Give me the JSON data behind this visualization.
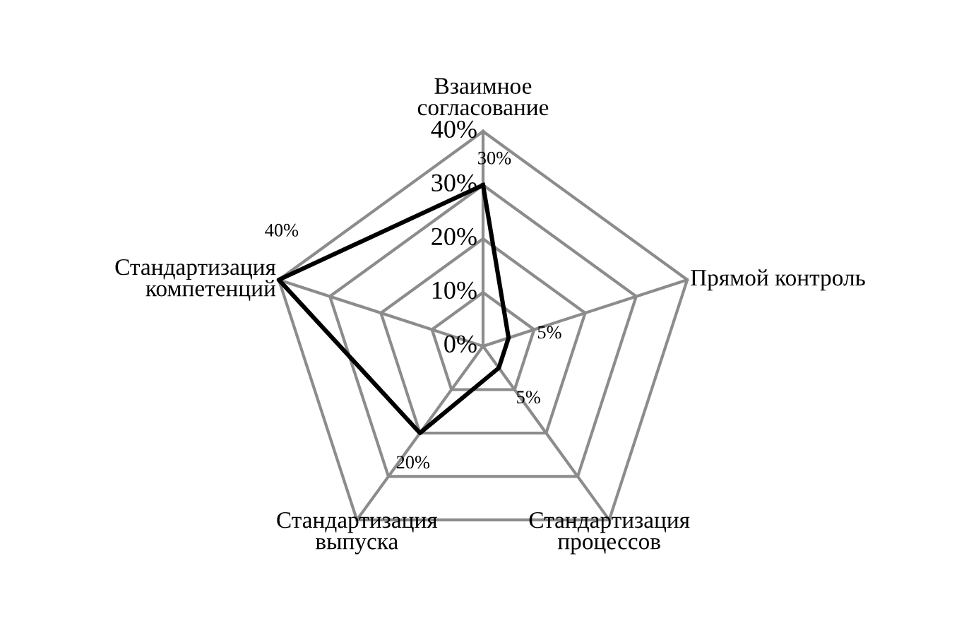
{
  "chart_data": {
    "type": "radar",
    "categories": [
      "Взаимное согласование",
      "Прямой контроль",
      "Стандартизация процессов",
      "Стандартизация выпуска",
      "Стандартизация компетенций"
    ],
    "series": [
      {
        "color": "#000000",
        "values": [
          30,
          5,
          5,
          20,
          40
        ],
        "value_labels": [
          "30%",
          "5%",
          "5%",
          "20%",
          "40%"
        ]
      }
    ],
    "ylim": [
      0,
      40
    ],
    "yticks": [
      {
        "value": 0,
        "label": "0%"
      },
      {
        "value": 10,
        "label": "10%"
      },
      {
        "value": 20,
        "label": "20%"
      },
      {
        "value": 30,
        "label": "30%"
      },
      {
        "value": 40,
        "label": "40%"
      }
    ],
    "grid": true,
    "marker": "none"
  }
}
